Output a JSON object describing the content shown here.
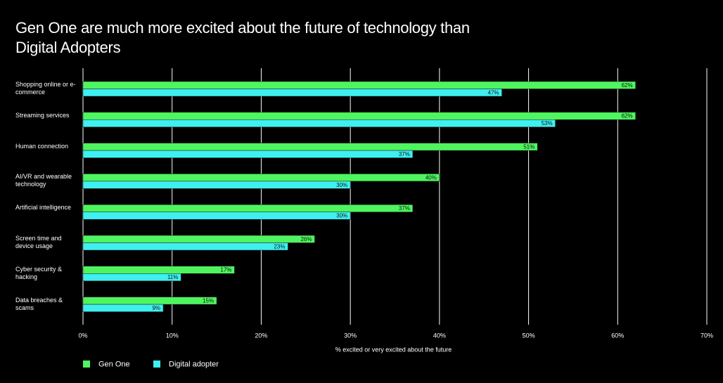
{
  "chart_data": {
    "type": "hbar",
    "title": "Gen One are much more excited about the future of technology than Digital Adopters",
    "x_label": "% excited or very excited about the future",
    "categories": [
      "Shopping online or e-commerce",
      "Streaming services",
      "Human connection",
      "AI/VR and wearable technology",
      "Artificial intelligence",
      "Screen time and device usage",
      "Cyber security & hacking",
      "Data breaches & scams"
    ],
    "series": [
      {
        "name": "Gen One",
        "color": "#4ef55f",
        "values": [
          62,
          62,
          51,
          40,
          37,
          26,
          17,
          15
        ],
        "value_labels": [
          "62%",
          "62%",
          "51%",
          "40%",
          "37%",
          "26%",
          "17%",
          "15%"
        ]
      },
      {
        "name": "Digital adopter",
        "color": "#3ff0f0",
        "values": [
          47,
          53,
          37,
          30,
          30,
          23,
          11,
          9
        ],
        "value_labels": [
          "47%",
          "53%",
          "37%",
          "30%",
          "30%",
          "23%",
          "11%",
          "9%"
        ]
      }
    ],
    "xlim": [
      0,
      70
    ],
    "xticks": [
      {
        "value": 0,
        "label": "0%"
      },
      {
        "value": 10,
        "label": "10%"
      },
      {
        "value": 20,
        "label": "20%"
      },
      {
        "value": 30,
        "label": "30%"
      },
      {
        "value": 40,
        "label": "40%"
      },
      {
        "value": 50,
        "label": "50%"
      },
      {
        "value": 60,
        "label": "60%"
      },
      {
        "value": 70,
        "label": "70%"
      }
    ],
    "grid": true
  }
}
